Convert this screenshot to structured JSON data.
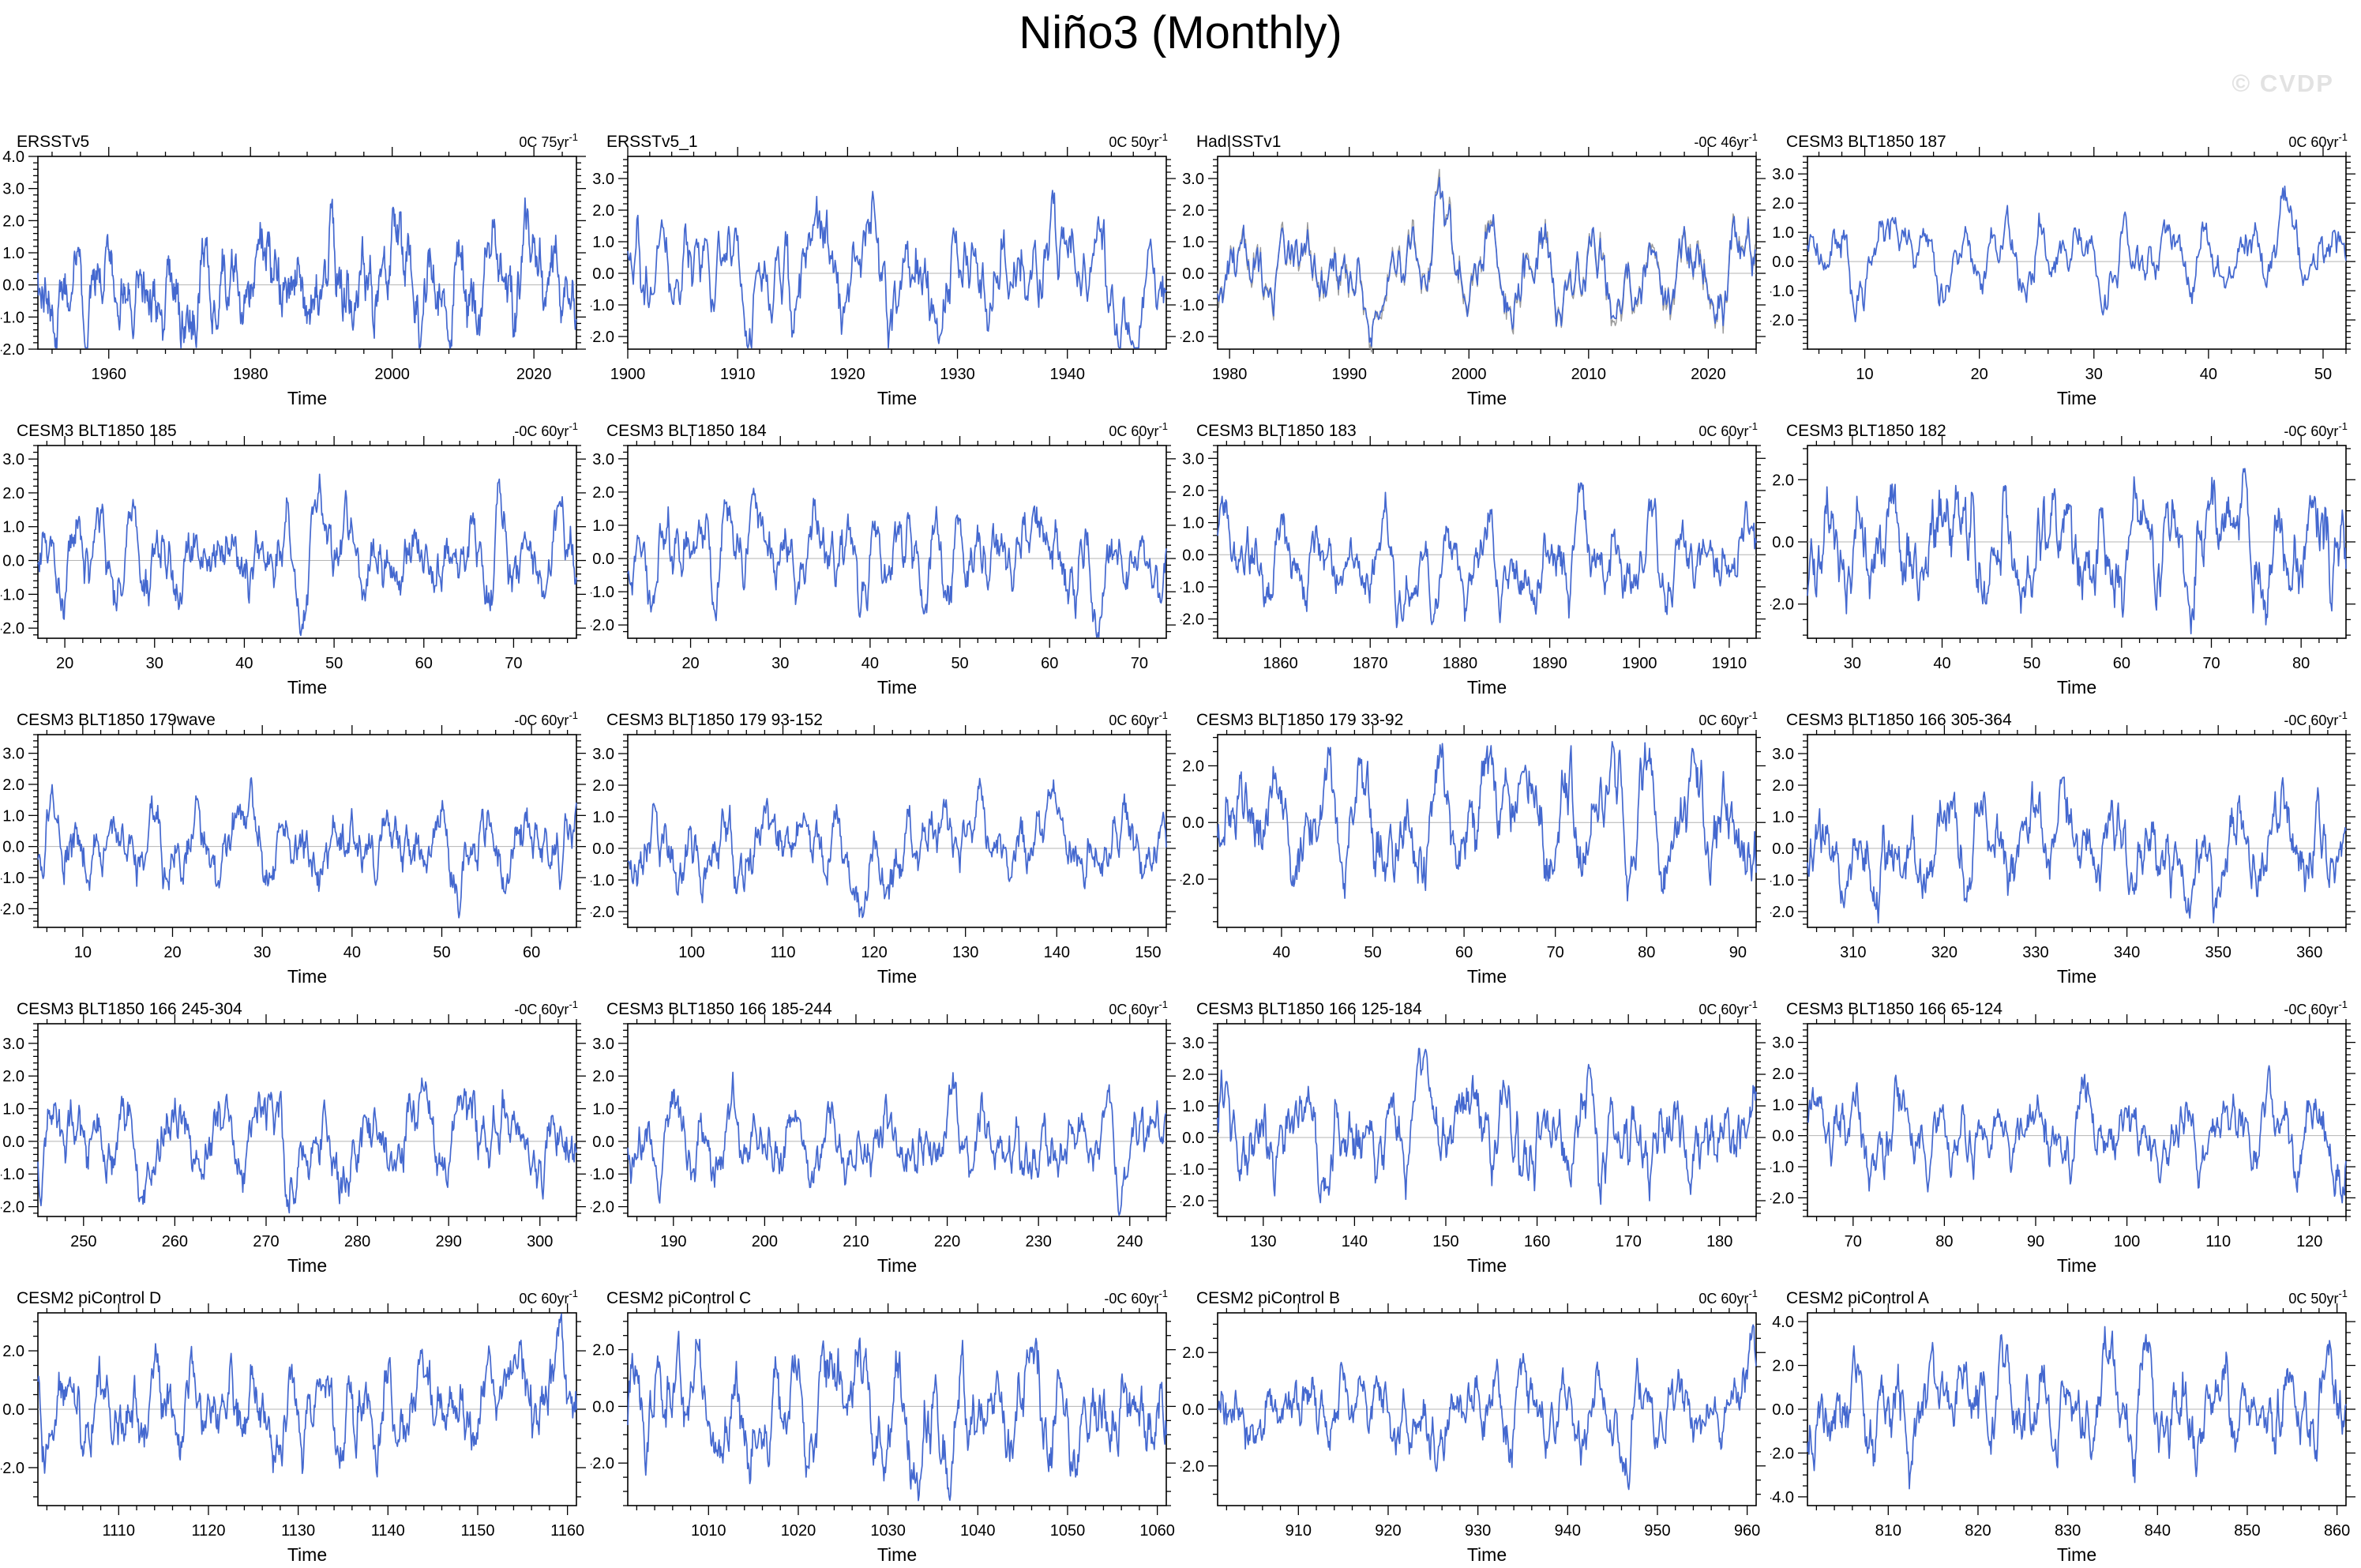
{
  "page": {
    "title": "Niño3 (Monthly)",
    "watermark": "© CVDP"
  },
  "colors": {
    "line": "#4468cf",
    "secondary_line": "#9a9a9a",
    "zero_line": "#b4b4b4",
    "axis": "#000000",
    "text": "#000000",
    "watermark": "#e2e2e2",
    "background": "#ffffff"
  },
  "chart_data": [
    {
      "type": "line",
      "title": "ERSSTv5",
      "trend": "0C 75yr",
      "trend_exp": "-1",
      "xlabel": "Time",
      "xlim": [
        1950,
        2026
      ],
      "xticks": [
        1960,
        1980,
        2000,
        2020
      ],
      "xtick_minor_step": 4,
      "ylim": [
        -2.0,
        4.0
      ],
      "yticks": [
        -2.0,
        -1.0,
        0.0,
        1.0,
        2.0,
        3.0,
        4.0
      ],
      "ytick_labels": [
        "-2.0",
        "-1.0",
        "0.0",
        "1.0",
        "2.0",
        "3.0",
        "4.0"
      ],
      "ytick_minor_step": 0.2,
      "zero_line": true,
      "approx_max": 3.3,
      "approx_min": -2.0,
      "seed": 101,
      "has_secondary": false
    },
    {
      "type": "line",
      "title": "ERSSTv5_1",
      "trend": "0C 50yr",
      "trend_exp": "-1",
      "xlabel": "Time",
      "xlim": [
        1900,
        1949
      ],
      "xticks": [
        1900,
        1910,
        1920,
        1930,
        1940
      ],
      "xtick_minor_step": 2,
      "ylim": [
        -2.4,
        3.7
      ],
      "yticks": [
        -2.0,
        -1.0,
        0.0,
        1.0,
        2.0,
        3.0
      ],
      "ytick_labels": [
        "-2.0",
        "-1.0",
        "0.0",
        "1.0",
        "2.0",
        "3.0"
      ],
      "ytick_minor_step": 0.2,
      "zero_line": true,
      "approx_max": 3.2,
      "approx_min": -2.2,
      "seed": 202,
      "has_secondary": false
    },
    {
      "type": "line",
      "title": "HadISSTv1",
      "trend": "-0C 46yr",
      "trend_exp": "-1",
      "xlabel": "Time",
      "xlim": [
        1979,
        2024
      ],
      "xticks": [
        1980,
        1990,
        2000,
        2010,
        2020
      ],
      "xtick_minor_step": 2,
      "ylim": [
        -2.4,
        3.7
      ],
      "yticks": [
        -2.0,
        -1.0,
        0.0,
        1.0,
        2.0,
        3.0
      ],
      "ytick_labels": [
        "-2.0",
        "-1.0",
        "0.0",
        "1.0",
        "2.0",
        "3.0"
      ],
      "ytick_minor_step": 0.2,
      "zero_line": true,
      "approx_max": 3.3,
      "approx_min": -2.1,
      "seed": 303,
      "has_secondary": true
    },
    {
      "type": "line",
      "title": "CESM3 BLT1850 187",
      "trend": "0C 60yr",
      "trend_exp": "-1",
      "xlabel": "Time",
      "xlim": [
        5,
        52
      ],
      "xticks": [
        10,
        20,
        30,
        40,
        50
      ],
      "xtick_minor_step": 2,
      "ylim": [
        -3.0,
        3.6
      ],
      "yticks": [
        -2.0,
        -1.0,
        0.0,
        1.0,
        2.0,
        3.0
      ],
      "ytick_labels": [
        "-2.0",
        "-1.0",
        "0.0",
        "1.0",
        "2.0",
        "3.0"
      ],
      "ytick_minor_step": 0.2,
      "zero_line": true,
      "approx_max": 1.9,
      "approx_min": -2.6,
      "seed": 404,
      "has_secondary": false
    },
    {
      "type": "line",
      "title": "CESM3 BLT1850 185",
      "trend": "-0C 60yr",
      "trend_exp": "-1",
      "xlabel": "Time",
      "xlim": [
        17,
        77
      ],
      "xticks": [
        20,
        30,
        40,
        50,
        60,
        70
      ],
      "xtick_minor_step": 2,
      "ylim": [
        -2.3,
        3.4
      ],
      "yticks": [
        -2.0,
        -1.0,
        0.0,
        1.0,
        2.0,
        3.0
      ],
      "ytick_labels": [
        "-2.0",
        "-1.0",
        "0.0",
        "1.0",
        "2.0",
        "3.0"
      ],
      "ytick_minor_step": 0.2,
      "zero_line": true,
      "approx_max": 2.8,
      "approx_min": -2.0,
      "seed": 505,
      "has_secondary": false
    },
    {
      "type": "line",
      "title": "CESM3 BLT1850 184",
      "trend": "0C 60yr",
      "trend_exp": "-1",
      "xlabel": "Time",
      "xlim": [
        13,
        73
      ],
      "xticks": [
        20,
        30,
        40,
        50,
        60,
        70
      ],
      "xtick_minor_step": 2,
      "ylim": [
        -2.4,
        3.4
      ],
      "yticks": [
        -2.0,
        -1.0,
        0.0,
        1.0,
        2.0,
        3.0
      ],
      "ytick_labels": [
        "-2.0",
        "-1.0",
        "0.0",
        "1.0",
        "2.0",
        "3.0"
      ],
      "ytick_minor_step": 0.2,
      "zero_line": true,
      "approx_max": 2.5,
      "approx_min": -2.1,
      "seed": 606,
      "has_secondary": false
    },
    {
      "type": "line",
      "title": "CESM3 BLT1850 183",
      "trend": "0C 60yr",
      "trend_exp": "-1",
      "xlabel": "Time",
      "xlim": [
        1853,
        1913
      ],
      "xticks": [
        1860,
        1870,
        1880,
        1890,
        1900,
        1910
      ],
      "xtick_minor_step": 2,
      "ylim": [
        -2.6,
        3.4
      ],
      "yticks": [
        -2.0,
        -1.0,
        0.0,
        1.0,
        2.0,
        3.0
      ],
      "ytick_labels": [
        "-2.0",
        "-1.0",
        "0.0",
        "1.0",
        "2.0",
        "3.0"
      ],
      "ytick_minor_step": 0.2,
      "zero_line": true,
      "approx_max": 2.2,
      "approx_min": -2.3,
      "seed": 707,
      "has_secondary": false
    },
    {
      "type": "line",
      "title": "CESM3 BLT1850 182",
      "trend": "-0C 60yr",
      "trend_exp": "-1",
      "xlabel": "Time",
      "xlim": [
        25,
        85
      ],
      "xticks": [
        30,
        40,
        50,
        60,
        70,
        80
      ],
      "xtick_minor_step": 2,
      "ylim": [
        -3.1,
        3.1
      ],
      "yticks": [
        -2.0,
        0.0,
        2.0
      ],
      "ytick_labels": [
        "-2.0",
        "0.0",
        "2.0"
      ],
      "ytick_minor_step": 0.5,
      "zero_line": true,
      "approx_max": 2.4,
      "approx_min": -2.9,
      "seed": 808,
      "has_secondary": false
    },
    {
      "type": "line",
      "title": "CESM3 BLT1850 179wave",
      "trend": "-0C 60yr",
      "trend_exp": "-1",
      "xlabel": "Time",
      "xlim": [
        5,
        65
      ],
      "xticks": [
        10,
        20,
        30,
        40,
        50,
        60
      ],
      "xtick_minor_step": 2,
      "ylim": [
        -2.6,
        3.6
      ],
      "yticks": [
        -2.0,
        -1.0,
        0.0,
        1.0,
        2.0,
        3.0
      ],
      "ytick_labels": [
        "-2.0",
        "-1.0",
        "0.0",
        "1.0",
        "2.0",
        "3.0"
      ],
      "ytick_minor_step": 0.2,
      "zero_line": true,
      "approx_max": 2.2,
      "approx_min": -2.3,
      "seed": 909,
      "has_secondary": false
    },
    {
      "type": "line",
      "title": "CESM3 BLT1850 179 93-152",
      "trend": "0C 60yr",
      "trend_exp": "-1",
      "xlabel": "Time",
      "xlim": [
        93,
        152
      ],
      "xticks": [
        100,
        110,
        120,
        130,
        140,
        150
      ],
      "xtick_minor_step": 2,
      "ylim": [
        -2.5,
        3.6
      ],
      "yticks": [
        -2.0,
        -1.0,
        0.0,
        1.0,
        2.0,
        3.0
      ],
      "ytick_labels": [
        "-2.0",
        "-1.0",
        "0.0",
        "1.0",
        "2.0",
        "3.0"
      ],
      "ytick_minor_step": 0.2,
      "zero_line": true,
      "approx_max": 2.2,
      "approx_min": -2.2,
      "seed": 1010,
      "has_secondary": false
    },
    {
      "type": "line",
      "title": "CESM3 BLT1850 179 33-92",
      "trend": "0C 60yr",
      "trend_exp": "-1",
      "xlabel": "Time",
      "xlim": [
        33,
        92
      ],
      "xticks": [
        40,
        50,
        60,
        70,
        80,
        90
      ],
      "xtick_minor_step": 2,
      "ylim": [
        -3.7,
        3.1
      ],
      "yticks": [
        -2.0,
        0.0,
        2.0
      ],
      "ytick_labels": [
        "-2.0",
        "0.0",
        "2.0"
      ],
      "ytick_minor_step": 0.5,
      "zero_line": true,
      "approx_max": 2.3,
      "approx_min": -3.3,
      "seed": 1111,
      "has_secondary": false
    },
    {
      "type": "line",
      "title": "CESM3 BLT1850 166 305-364",
      "trend": "-0C 60yr",
      "trend_exp": "-1",
      "xlabel": "Time",
      "xlim": [
        305,
        364
      ],
      "xticks": [
        310,
        320,
        330,
        340,
        350,
        360
      ],
      "xtick_minor_step": 2,
      "ylim": [
        -2.5,
        3.6
      ],
      "yticks": [
        -2.0,
        -1.0,
        0.0,
        1.0,
        2.0,
        3.0
      ],
      "ytick_labels": [
        "-2.0",
        "-1.0",
        "0.0",
        "1.0",
        "2.0",
        "3.0"
      ],
      "ytick_minor_step": 0.2,
      "zero_line": true,
      "approx_max": 2.4,
      "approx_min": -2.2,
      "seed": 1212,
      "has_secondary": false
    },
    {
      "type": "line",
      "title": "CESM3 BLT1850 166 245-304",
      "trend": "-0C 60yr",
      "trend_exp": "-1",
      "xlabel": "Time",
      "xlim": [
        245,
        304
      ],
      "xticks": [
        250,
        260,
        270,
        280,
        290,
        300
      ],
      "xtick_minor_step": 2,
      "ylim": [
        -2.3,
        3.6
      ],
      "yticks": [
        -2.0,
        -1.0,
        0.0,
        1.0,
        2.0,
        3.0
      ],
      "ytick_labels": [
        "-2.0",
        "-1.0",
        "0.0",
        "1.0",
        "2.0",
        "3.0"
      ],
      "ytick_minor_step": 0.2,
      "zero_line": true,
      "approx_max": 2.1,
      "approx_min": -2.0,
      "seed": 1313,
      "has_secondary": false
    },
    {
      "type": "line",
      "title": "CESM3 BLT1850 166 185-244",
      "trend": "0C 60yr",
      "trend_exp": "-1",
      "xlabel": "Time",
      "xlim": [
        185,
        244
      ],
      "xticks": [
        190,
        200,
        210,
        220,
        230,
        240
      ],
      "xtick_minor_step": 2,
      "ylim": [
        -2.3,
        3.6
      ],
      "yticks": [
        -2.0,
        -1.0,
        0.0,
        1.0,
        2.0,
        3.0
      ],
      "ytick_labels": [
        "-2.0",
        "-1.0",
        "0.0",
        "1.0",
        "2.0",
        "3.0"
      ],
      "ytick_minor_step": 0.2,
      "zero_line": true,
      "approx_max": 2.5,
      "approx_min": -1.9,
      "seed": 1414,
      "has_secondary": false
    },
    {
      "type": "line",
      "title": "CESM3 BLT1850 166 125-184",
      "trend": "0C 60yr",
      "trend_exp": "-1",
      "xlabel": "Time",
      "xlim": [
        125,
        184
      ],
      "xticks": [
        130,
        140,
        150,
        160,
        170,
        180
      ],
      "xtick_minor_step": 2,
      "ylim": [
        -2.5,
        3.6
      ],
      "yticks": [
        -2.0,
        -1.0,
        0.0,
        1.0,
        2.0,
        3.0
      ],
      "ytick_labels": [
        "-2.0",
        "-1.0",
        "0.0",
        "1.0",
        "2.0",
        "3.0"
      ],
      "ytick_minor_step": 0.2,
      "zero_line": true,
      "approx_max": 2.7,
      "approx_min": -2.2,
      "seed": 1515,
      "has_secondary": false
    },
    {
      "type": "line",
      "title": "CESM3 BLT1850 166 65-124",
      "trend": "-0C 60yr",
      "trend_exp": "-1",
      "xlabel": "Time",
      "xlim": [
        65,
        124
      ],
      "xticks": [
        70,
        80,
        90,
        100,
        110,
        120
      ],
      "xtick_minor_step": 2,
      "ylim": [
        -2.6,
        3.6
      ],
      "yticks": [
        -2.0,
        -1.0,
        0.0,
        1.0,
        2.0,
        3.0
      ],
      "ytick_labels": [
        "-2.0",
        "-1.0",
        "0.0",
        "1.0",
        "2.0",
        "3.0"
      ],
      "ytick_minor_step": 0.2,
      "zero_line": true,
      "approx_max": 2.1,
      "approx_min": -2.3,
      "seed": 1616,
      "has_secondary": false
    },
    {
      "type": "line",
      "title": "CESM2 piControl D",
      "trend": "0C 60yr",
      "trend_exp": "-1",
      "xlabel": "Time",
      "xlim": [
        1101,
        1161
      ],
      "xticks": [
        1110,
        1120,
        1130,
        1140,
        1150,
        1160
      ],
      "xtick_minor_step": 2,
      "ylim": [
        -3.3,
        3.3
      ],
      "yticks": [
        -2.0,
        0.0,
        2.0
      ],
      "ytick_labels": [
        "-2.0",
        "0.0",
        "2.0"
      ],
      "ytick_minor_step": 0.5,
      "zero_line": true,
      "approx_max": 2.8,
      "approx_min": -2.7,
      "seed": 1717,
      "has_secondary": false
    },
    {
      "type": "line",
      "title": "CESM2 piControl C",
      "trend": "-0C 60yr",
      "trend_exp": "-1",
      "xlabel": "Time",
      "xlim": [
        1001,
        1061
      ],
      "xticks": [
        1010,
        1020,
        1030,
        1040,
        1050,
        1060
      ],
      "xtick_minor_step": 2,
      "ylim": [
        -3.5,
        3.3
      ],
      "yticks": [
        -2.0,
        0.0,
        2.0
      ],
      "ytick_labels": [
        "-2.0",
        "0.0",
        "2.0"
      ],
      "ytick_minor_step": 0.5,
      "zero_line": true,
      "approx_max": 2.9,
      "approx_min": -3.0,
      "seed": 1818,
      "has_secondary": false
    },
    {
      "type": "line",
      "title": "CESM2 piControl B",
      "trend": "0C 60yr",
      "trend_exp": "-1",
      "xlabel": "Time",
      "xlim": [
        901,
        961
      ],
      "xticks": [
        910,
        920,
        930,
        940,
        950,
        960
      ],
      "xtick_minor_step": 2,
      "ylim": [
        -3.4,
        3.4
      ],
      "yticks": [
        -2.0,
        0.0,
        2.0
      ],
      "ytick_labels": [
        "-2.0",
        "0.0",
        "2.0"
      ],
      "ytick_minor_step": 0.5,
      "zero_line": true,
      "approx_max": 2.9,
      "approx_min": -2.9,
      "seed": 1919,
      "has_secondary": false
    },
    {
      "type": "line",
      "title": "CESM2 piControl A",
      "trend": "0C 50yr",
      "trend_exp": "-1",
      "xlabel": "Time",
      "xlim": [
        801,
        861
      ],
      "xticks": [
        810,
        820,
        830,
        840,
        850,
        860
      ],
      "xtick_minor_step": 2,
      "ylim": [
        -4.4,
        4.4
      ],
      "yticks": [
        -4.0,
        -2.0,
        0.0,
        2.0,
        4.0
      ],
      "ytick_labels": [
        "-4.0",
        "-2.0",
        "0.0",
        "2.0",
        "4.0"
      ],
      "ytick_minor_step": 0.5,
      "zero_line": true,
      "approx_max": 3.8,
      "approx_min": -3.6,
      "seed": 2020,
      "has_secondary": false
    }
  ]
}
